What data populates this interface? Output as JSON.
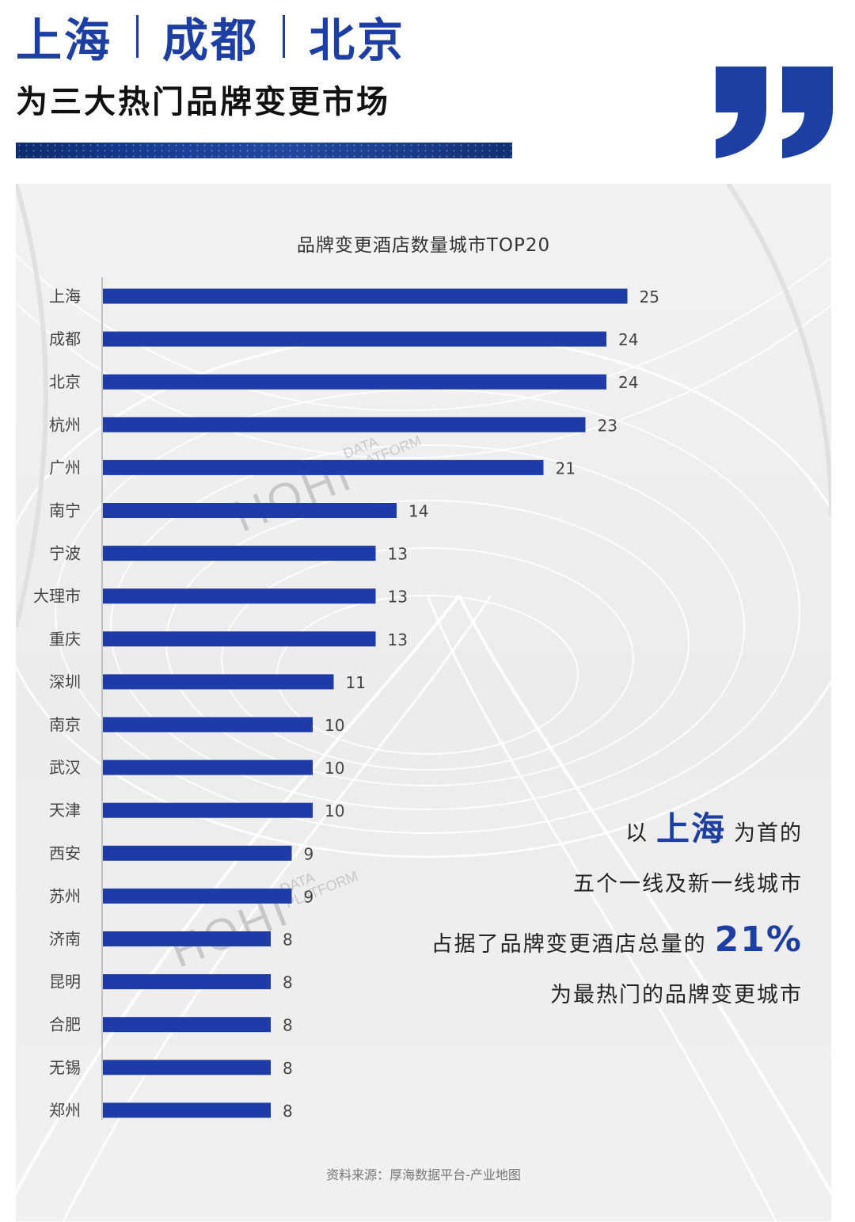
{
  "header": {
    "cities": [
      "上海",
      "成都",
      "北京"
    ],
    "subtitle": "为三大热门品牌变更市场"
  },
  "colors": {
    "brand_blue": "#1d3fa3",
    "bar_blue": "#1e3ca8",
    "panel_bg": "#efefef"
  },
  "watermark": {
    "big": "HOHI",
    "small_1": "DATA",
    "small_2": "PLATFORM"
  },
  "chart_data": {
    "type": "bar",
    "orientation": "horizontal",
    "title": "品牌变更酒店数量城市TOP20",
    "categories": [
      "上海",
      "成都",
      "北京",
      "杭州",
      "广州",
      "南宁",
      "宁波",
      "大理市",
      "重庆",
      "深圳",
      "南京",
      "武汉",
      "天津",
      "西安",
      "苏州",
      "济南",
      "昆明",
      "合肥",
      "无锡",
      "郑州"
    ],
    "values": [
      25,
      24,
      24,
      23,
      21,
      14,
      13,
      13,
      13,
      11,
      10,
      10,
      10,
      9,
      9,
      8,
      8,
      8,
      8,
      8
    ],
    "xlim": [
      0,
      25
    ],
    "grid": false,
    "data_labels": true
  },
  "callout": {
    "l1_pre": "以",
    "l1_hl": "上海",
    "l1_post": "为首的",
    "l2": "五个一线及新一线城市",
    "l3_pre": "占据了品牌变更酒店总量的",
    "l3_pct": "21%",
    "l4": "为最热门的品牌变更城市"
  },
  "source": "资料来源：厚海数据平台-产业地图"
}
